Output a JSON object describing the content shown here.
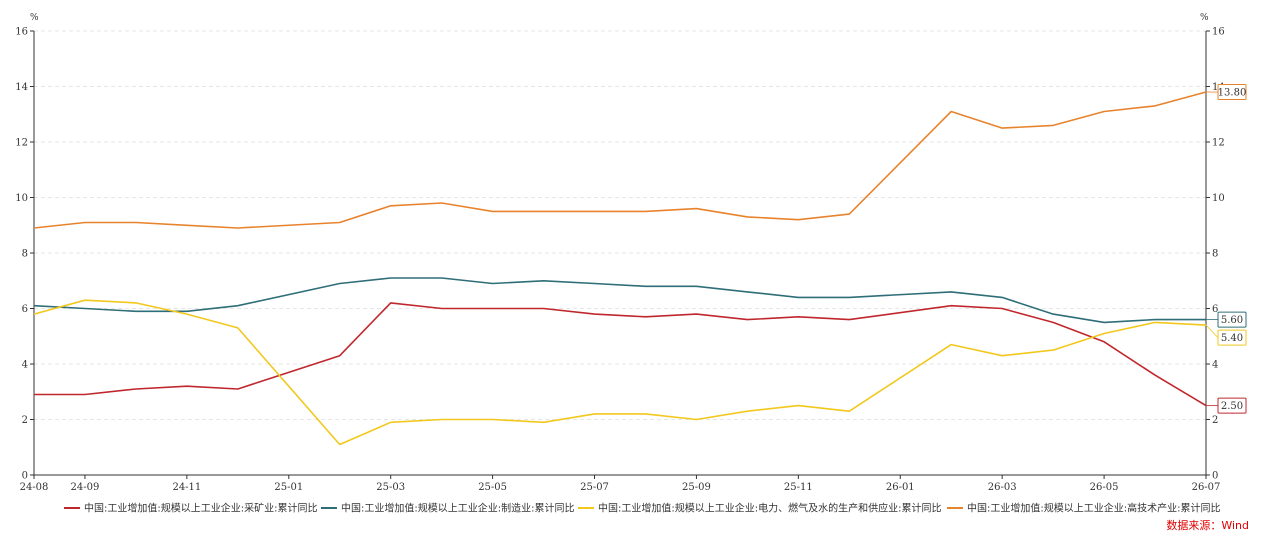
{
  "chart_data": {
    "type": "line",
    "title": "",
    "y_unit_left": "%",
    "y_unit_right": "%",
    "ylim": [
      0,
      16
    ],
    "yticks": [
      0,
      2,
      4,
      6,
      8,
      10,
      12,
      14,
      16
    ],
    "grid": true,
    "legend_position": "bottom",
    "categories": [
      "24-08",
      "24-09",
      "24-10",
      "24-11",
      "24-12",
      "25-01",
      "25-02",
      "25-03",
      "25-04",
      "25-05",
      "25-06",
      "25-07",
      "25-08",
      "25-09",
      "25-10",
      "25-11",
      "25-12",
      "26-01",
      "26-02",
      "26-03",
      "26-04",
      "26-05",
      "26-06",
      "26-07"
    ],
    "x_tick_labels": [
      "24-08",
      "24-09",
      "24-11",
      "25-01",
      "25-03",
      "25-05",
      "25-07",
      "25-09",
      "25-11",
      "26-01",
      "26-03",
      "26-05",
      "26-07"
    ],
    "series": [
      {
        "name": "中国:工业增加值:规模以上工业企业:采矿业:累计同比",
        "color": "#c0272d",
        "end_label": "2.50",
        "values": [
          2.9,
          2.9,
          3.1,
          3.2,
          3.1,
          null,
          4.3,
          6.2,
          6.0,
          6.0,
          6.0,
          5.8,
          5.7,
          5.8,
          5.6,
          5.7,
          5.6,
          null,
          6.1,
          6.0,
          5.5,
          4.8,
          3.6,
          2.5
        ]
      },
      {
        "name": "中国:工业增加值:规模以上工业企业:制造业:累计同比",
        "color": "#2e6e78",
        "end_label": "5.60",
        "values": [
          6.1,
          6.0,
          5.9,
          5.9,
          6.1,
          null,
          6.9,
          7.1,
          7.1,
          6.9,
          7.0,
          6.9,
          6.8,
          6.8,
          6.6,
          6.4,
          6.4,
          null,
          6.6,
          6.4,
          5.8,
          5.5,
          5.6,
          5.6
        ]
      },
      {
        "name": "中国:工业增加值:规模以上工业企业:电力、燃气及水的生产和供应业:累计同比",
        "color": "#f2c81d",
        "end_label": "5.40",
        "values": [
          5.8,
          6.3,
          6.2,
          5.8,
          5.3,
          null,
          1.1,
          1.9,
          2.0,
          2.0,
          1.9,
          2.2,
          2.2,
          2.0,
          2.3,
          2.5,
          2.3,
          null,
          4.7,
          4.3,
          4.5,
          5.1,
          5.5,
          5.4
        ]
      },
      {
        "name": "中国:工业增加值:规模以上工业企业:高技术产业:累计同比",
        "color": "#e8832d",
        "end_label": "13.80",
        "values": [
          8.9,
          9.1,
          9.1,
          9.0,
          8.9,
          null,
          9.1,
          9.7,
          9.8,
          9.5,
          9.5,
          9.5,
          9.5,
          9.6,
          9.3,
          9.2,
          9.4,
          null,
          13.1,
          12.5,
          12.6,
          13.1,
          13.3,
          13.8
        ]
      }
    ],
    "source": "数据来源：Wind"
  }
}
